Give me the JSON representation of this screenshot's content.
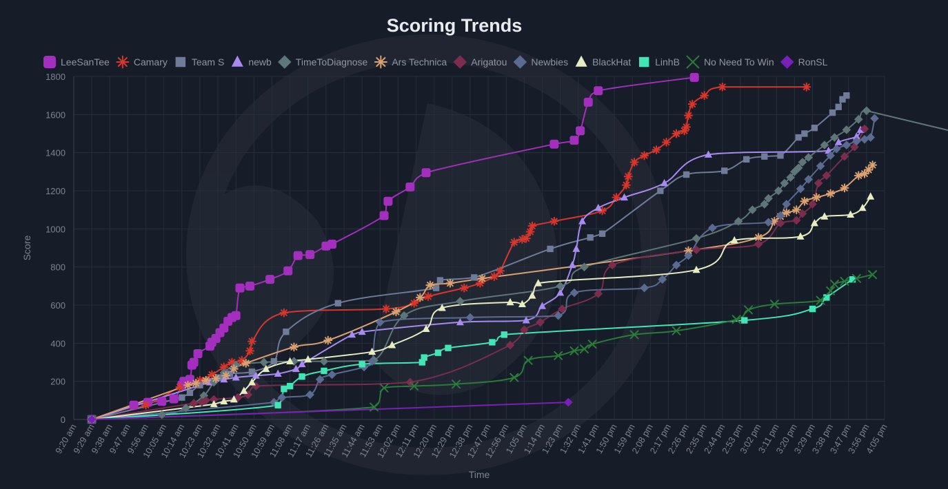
{
  "chart_data": {
    "type": "line",
    "title": "Scoring Trends",
    "xlabel": "Time",
    "ylabel": "Score",
    "ylim": [
      0,
      1800
    ],
    "y_ticks": [
      0,
      200,
      400,
      600,
      800,
      1000,
      1200,
      1400,
      1600,
      1800
    ],
    "x_tick_labels": [
      "9:20 am",
      "9:29 am",
      "9:38 am",
      "9:47 am",
      "9:56 am",
      "10:05 am",
      "10:14 am",
      "10:23 am",
      "10:32 am",
      "10:41 am",
      "10:50 am",
      "10:59 am",
      "11:08 am",
      "11:17 am",
      "11:26 am",
      "11:35 am",
      "11:44 am",
      "11:53 am",
      "12:02 pm",
      "12:11 pm",
      "12:20 pm",
      "12:29 pm",
      "12:38 pm",
      "12:47 pm",
      "12:56 pm",
      "1:05 pm",
      "1:14 pm",
      "1:23 pm",
      "1:32 pm",
      "1:41 pm",
      "1:50 pm",
      "1:59 pm",
      "2:08 pm",
      "2:17 pm",
      "2:26 pm",
      "2:35 pm",
      "2:44 pm",
      "2:53 pm",
      "3:02 pm",
      "3:11 pm",
      "3:20 pm",
      "3:29 pm",
      "3:38 pm",
      "3:47 pm",
      "3:56 pm",
      "4:05 pm"
    ],
    "grid": true,
    "legend_position": "top",
    "series": [
      {
        "name": "LeeSanTee",
        "color": "#a42fbf",
        "marker": "rounded-square",
        "x": [
          "9:29 am",
          "9:50 am",
          "9:57 am",
          "10:04 am",
          "10:10 am",
          "10:14 am",
          "10:15 am",
          "10:18 am",
          "10:19 am",
          "10:20 am",
          "10:22 am",
          "10:28 am",
          "10:29 am",
          "10:31 am",
          "10:33 am",
          "10:35 am",
          "10:37 am",
          "10:39 am",
          "10:41 am",
          "10:43 am",
          "10:48 am",
          "10:58 am",
          "11:07 am",
          "11:12 am",
          "11:18 am",
          "11:26 am",
          "11:29 am",
          "11:55 am",
          "11:57 am",
          "12:08 pm",
          "12:16 pm",
          "1:20 pm",
          "1:30 pm",
          "1:33 pm",
          "1:37 pm",
          "1:42 pm",
          "2:30 pm"
        ],
        "y": [
          0,
          75,
          90,
          95,
          108,
          180,
          200,
          210,
          285,
          300,
          345,
          385,
          405,
          425,
          455,
          480,
          515,
          535,
          545,
          690,
          700,
          735,
          780,
          860,
          865,
          910,
          920,
          1070,
          1145,
          1220,
          1295,
          1445,
          1465,
          1515,
          1665,
          1725,
          1795
        ]
      },
      {
        "name": "Camary",
        "color": "#d8362c",
        "marker": "asterisk",
        "x": [
          "9:29 am",
          "9:56 am",
          "10:13 am",
          "10:23 am",
          "10:29 am",
          "10:35 am",
          "10:39 am",
          "10:44 am",
          "10:48 am",
          "10:49 am",
          "11:05 am",
          "11:56 am",
          "12:10 pm",
          "12:17 pm",
          "12:35 pm",
          "12:43 pm",
          "12:50 pm",
          "12:53 pm",
          "1:00 pm",
          "1:04 pm",
          "1:06 pm",
          "1:08 pm",
          "1:09 pm",
          "1:20 pm",
          "1:44 pm",
          "1:51 pm",
          "1:56 pm",
          "1:57 pm",
          "2:00 pm",
          "2:05 pm",
          "2:11 pm",
          "2:16 pm",
          "2:21 pm",
          "2:25 pm",
          "2:26 pm",
          "2:27 pm",
          "2:29 pm",
          "2:35 pm",
          "2:44 pm",
          "3:26 pm"
        ],
        "y": [
          0,
          75,
          170,
          205,
          235,
          275,
          300,
          310,
          360,
          410,
          560,
          580,
          610,
          645,
          690,
          715,
          750,
          780,
          930,
          945,
          950,
          985,
          1015,
          1040,
          1095,
          1165,
          1230,
          1275,
          1350,
          1385,
          1415,
          1455,
          1500,
          1515,
          1535,
          1595,
          1655,
          1700,
          1745,
          1745
        ]
      },
      {
        "name": "Team S",
        "color": "#6f7b98",
        "marker": "square",
        "x": [
          "9:29 am",
          "10:14 am",
          "10:18 am",
          "10:23 am",
          "10:29 am",
          "10:33 am",
          "10:38 am",
          "10:49 am",
          "11:00 am",
          "11:06 am",
          "11:32 am",
          "12:21 pm",
          "12:23 pm",
          "12:40 pm",
          "1:18 pm",
          "1:38 pm",
          "1:44 pm",
          "2:13 pm",
          "2:26 pm",
          "2:45 pm",
          "2:56 pm",
          "3:05 pm",
          "3:13 pm",
          "3:22 pm",
          "3:25 pm",
          "3:30 pm",
          "3:39 pm",
          "3:42 pm",
          "3:44 pm",
          "3:46 pm"
        ],
        "y": [
          0,
          115,
          140,
          180,
          200,
          220,
          240,
          250,
          305,
          460,
          610,
          690,
          730,
          745,
          895,
          955,
          975,
          1200,
          1285,
          1305,
          1365,
          1380,
          1385,
          1480,
          1500,
          1530,
          1610,
          1640,
          1680,
          1700
        ]
      },
      {
        "name": "newb",
        "color": "#a78bf0",
        "marker": "triangle",
        "x": [
          "9:29 am",
          "10:28 am",
          "10:35 am",
          "10:41 am",
          "10:51 am",
          "11:02 am",
          "11:11 am",
          "11:14 am",
          "11:39 am",
          "11:44 am",
          "12:33 pm",
          "1:06 pm",
          "1:14 pm",
          "1:23 pm",
          "1:29 pm",
          "1:31 pm",
          "1:34 pm",
          "1:42 pm",
          "1:55 pm",
          "2:15 pm",
          "2:37 pm",
          "3:37 pm",
          "3:42 pm",
          "3:51 pm",
          "3:53 pm"
        ],
        "y": [
          0,
          195,
          210,
          220,
          230,
          240,
          265,
          290,
          445,
          460,
          510,
          520,
          595,
          665,
          810,
          895,
          1040,
          1110,
          1165,
          1240,
          1390,
          1410,
          1455,
          1485,
          1520
        ]
      },
      {
        "name": "TimeToDiagnose",
        "color": "#5f7679",
        "marker": "diamond",
        "x": [
          "9:29 am",
          "10:04 am",
          "10:16 am",
          "10:25 am",
          "10:30 am",
          "10:35 am",
          "10:41 am",
          "10:55 am",
          "11:10 am",
          "11:25 am",
          "11:50 am",
          "11:59 pm_",
          "12:05 pm",
          "12:33 pm",
          "1:23 pm",
          "1:35 pm",
          "2:31 pm",
          "2:52 pm",
          "2:59 pm",
          "3:05 pm",
          "3:07 pm",
          "3:12 pm",
          "3:15 pm",
          "3:18 pm",
          "3:20 pm",
          "3:22 pm",
          "3:24 pm",
          "3:27 pm",
          "3:35 pm",
          "3:40 pm",
          "3:46 pm",
          "3:52 pm",
          "3:56 pm"
        ],
        "y": [
          0,
          25,
          60,
          125,
          195,
          245,
          285,
          300,
          305,
          305,
          310,
          400,
          545,
          620,
          700,
          800,
          950,
          1040,
          1100,
          1130,
          1160,
          1200,
          1240,
          1270,
          1300,
          1320,
          1350,
          1375,
          1440,
          1480,
          1520,
          1575,
          1620
        ]
      },
      {
        "name": "Ars Technica",
        "color": "#dba170",
        "marker": "asterisk",
        "x": [
          "9:29 am",
          "10:17 am",
          "10:21 am",
          "10:26 am",
          "10:31 am",
          "10:36 am",
          "10:40 am",
          "10:46 am",
          "11:10 am",
          "11:27 am",
          "12:01 pm",
          "12:13 pm",
          "12:18 pm",
          "12:28 pm",
          "12:44 pm",
          "2:27 pm",
          "3:02 pm",
          "3:10 pm",
          "3:13 pm",
          "3:16 pm",
          "3:21 pm",
          "3:25 pm",
          "3:31 pm",
          "3:38 pm",
          "3:45 pm",
          "3:52 pm",
          "3:55 pm",
          "3:57 pm",
          "3:59 pm"
        ],
        "y": [
          0,
          180,
          190,
          205,
          215,
          230,
          265,
          295,
          380,
          415,
          565,
          640,
          705,
          715,
          740,
          885,
          955,
          1040,
          1065,
          1085,
          1100,
          1145,
          1165,
          1185,
          1215,
          1280,
          1290,
          1310,
          1335
        ]
      },
      {
        "name": "Arigatou",
        "color": "#7c2d4e",
        "marker": "diamond",
        "x": [
          "9:29 am",
          "10:20 am",
          "10:24 am",
          "10:26 am",
          "10:30 am",
          "10:42 am",
          "10:47 am",
          "10:51 am",
          "12:08 pm",
          "12:58 pm",
          "1:05 pm",
          "1:13 pm",
          "1:24 pm",
          "1:42 pm",
          "1:49 pm",
          "2:31 pm",
          "3:02 pm",
          "3:13 pm",
          "3:21 pm",
          "3:24 pm",
          "3:29 pm",
          "3:32 pm",
          "3:36 pm",
          "3:45 pm",
          "3:50 pm",
          "3:55 pm"
        ],
        "y": [
          0,
          85,
          90,
          100,
          105,
          115,
          130,
          175,
          195,
          390,
          470,
          510,
          580,
          660,
          810,
          890,
          920,
          1030,
          1045,
          1080,
          1130,
          1240,
          1280,
          1380,
          1430,
          1525
        ]
      },
      {
        "name": "Newbies",
        "color": "#5b6a90",
        "marker": "diamond",
        "x": [
          "9:29 am",
          "11:00 am",
          "11:04 am",
          "11:18 am",
          "11:23 am",
          "11:29 am",
          "11:45 am",
          "11:49 am",
          "11:53 am",
          "12:38 pm",
          "1:22 pm",
          "1:30 pm",
          "2:05 pm",
          "2:14 pm",
          "2:21 pm",
          "2:27 pm",
          "2:39 pm",
          "3:07 pm",
          "3:13 pm",
          "3:16 pm",
          "3:23 pm",
          "3:27 pm",
          "3:33 pm",
          "3:38 pm",
          "3:41 pm",
          "3:46 pm",
          "3:51 pm",
          "3:55 pm",
          "3:58 pm",
          "4:00 pm"
        ],
        "y": [
          0,
          90,
          115,
          130,
          210,
          235,
          275,
          305,
          510,
          535,
          545,
          665,
          690,
          735,
          810,
          860,
          1005,
          1035,
          1070,
          1130,
          1210,
          1260,
          1330,
          1385,
          1420,
          1440,
          1460,
          1470,
          1480,
          1580
        ]
      },
      {
        "name": "BlackHat",
        "color": "#e6edc2",
        "marker": "triangle",
        "x": [
          "9:29 am",
          "10:30 am",
          "10:35 am",
          "10:40 am",
          "10:45 am",
          "10:49 am",
          "10:56 am",
          "11:08 am",
          "11:17 am",
          "11:49 am",
          "11:59 am",
          "12:16 pm",
          "12:24 pm",
          "12:58 pm",
          "1:04 pm",
          "1:09 pm",
          "1:12 pm",
          "2:31 pm",
          "2:50 pm",
          "3:23 pm",
          "3:30 pm",
          "3:35 pm",
          "3:48 pm",
          "3:54 pm",
          "3:58 pm"
        ],
        "y": [
          0,
          80,
          95,
          105,
          150,
          195,
          265,
          305,
          315,
          355,
          390,
          475,
          585,
          615,
          605,
          650,
          715,
          785,
          940,
          960,
          1030,
          1065,
          1075,
          1110,
          1170
        ]
      },
      {
        "name": "LinhB",
        "color": "#42e6b6",
        "marker": "square",
        "x": [
          "9:29 am",
          "11:02 am",
          "11:05 am",
          "11:08 am",
          "11:14 am",
          "11:25 am",
          "11:44 am",
          "12:14 pm",
          "12:15 pm",
          "12:22 pm",
          "12:27 pm",
          "12:49 pm",
          "12:55 pm",
          "2:55 pm",
          "3:29 pm",
          "3:36 pm",
          "3:49 pm"
        ],
        "y": [
          0,
          75,
          160,
          175,
          225,
          255,
          290,
          300,
          325,
          350,
          375,
          405,
          445,
          520,
          580,
          640,
          735
        ]
      },
      {
        "name": "No Need To Win",
        "color": "#2a7c3a",
        "marker": "cross",
        "x": [
          "9:29 am",
          "11:50 am",
          "11:55 am",
          "12:10 pm",
          "12:31 pm",
          "1:00 pm",
          "1:07 pm",
          "1:22 pm",
          "1:30 pm",
          "1:35 pm",
          "1:39 pm",
          "2:00 pm",
          "2:21 pm",
          "2:51 pm",
          "2:57 pm",
          "3:10 pm",
          "3:33 pm",
          "3:38 pm",
          "3:40 pm",
          "3:45 pm",
          "3:51 pm",
          "3:59 pm"
        ],
        "y": [
          0,
          65,
          165,
          175,
          185,
          220,
          310,
          335,
          360,
          370,
          395,
          445,
          465,
          525,
          575,
          605,
          625,
          675,
          710,
          725,
          740,
          760
        ]
      },
      {
        "name": "RonSL",
        "color": "#7a20b9",
        "marker": "diamond",
        "x": [
          "9:29 am",
          "1:27 pm"
        ],
        "y": [
          0,
          90
        ]
      }
    ]
  }
}
